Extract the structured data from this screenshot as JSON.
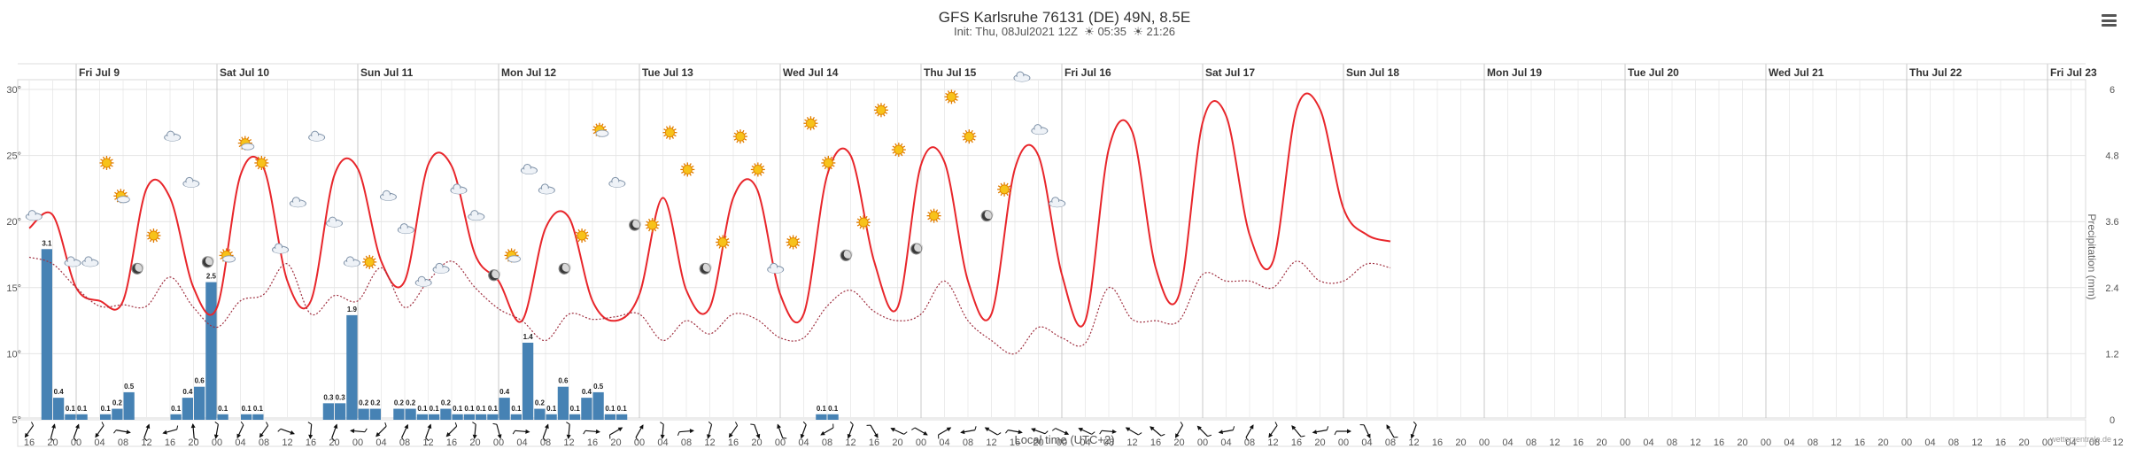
{
  "header": {
    "title": "GFS Karlsruhe 76131 (DE) 49N, 8.5E",
    "init": "Init: Thu, 08Jul2021 12Z",
    "sunrise": "05:35",
    "sunset": "21:26"
  },
  "credit": "wetterzentrale.de",
  "chart_data": {
    "type": "line",
    "title": "GFS Karlsruhe 76131 (DE) 49N, 8.5E",
    "xlabel": "Local time (UTC+2)",
    "ylabel_right": "Precipitation (mm)",
    "y_left": {
      "min": 5,
      "max": 30,
      "ticks": [
        "5°",
        "10°",
        "15°",
        "20°",
        "25°",
        "30°"
      ]
    },
    "y_right": {
      "min": 0,
      "max": 6,
      "ticks": [
        "0",
        "1.2",
        "2.4",
        "3.6",
        "4.8",
        "6"
      ]
    },
    "start_hour": 16,
    "step_hours": 4,
    "hour_labels": [
      "16",
      "20",
      "00",
      "04",
      "08",
      "12",
      "16",
      "20",
      "00",
      "04",
      "08",
      "12",
      "16",
      "20",
      "00",
      "04",
      "08",
      "12",
      "16",
      "20",
      "00",
      "04",
      "08",
      "12",
      "16",
      "20",
      "00",
      "04",
      "08",
      "12",
      "16",
      "20",
      "00",
      "04",
      "08",
      "12",
      "16",
      "20",
      "00",
      "04",
      "08",
      "12",
      "16",
      "20",
      "00",
      "04",
      "08",
      "12",
      "16",
      "20",
      "00",
      "04",
      "08",
      "12",
      "16",
      "20",
      "00",
      "04",
      "08",
      "12",
      "16",
      "20",
      "00",
      "04",
      "08",
      "12",
      "16",
      "20",
      "00",
      "04",
      "08",
      "12",
      "16",
      "20",
      "00",
      "04",
      "08",
      "12",
      "16",
      "20",
      "00",
      "04",
      "08",
      "12",
      "16",
      "20",
      "00",
      "04",
      "08",
      "12",
      "16",
      "20",
      "00",
      "04"
    ],
    "days": [
      {
        "label": "Fri Jul 9",
        "index": 2
      },
      {
        "label": "Sat Jul 10",
        "index": 8
      },
      {
        "label": "Sun Jul 11",
        "index": 14
      },
      {
        "label": "Mon Jul 12",
        "index": 20
      },
      {
        "label": "Tue Jul 13",
        "index": 26
      },
      {
        "label": "Wed Jul 14",
        "index": 32
      },
      {
        "label": "Thu Jul 15",
        "index": 38
      },
      {
        "label": "Fri Jul 16",
        "index": 44
      },
      {
        "label": "Sat Jul 17",
        "index": 50
      },
      {
        "label": "Sun Jul 18",
        "index": 56
      },
      {
        "label": "Mon Jul 19",
        "index": 62
      },
      {
        "label": "Tue Jul 20",
        "index": 68
      },
      {
        "label": "Wed Jul 21",
        "index": 74
      },
      {
        "label": "Thu Jul 22",
        "index": 80
      },
      {
        "label": "Fri Jul 23",
        "index": 86
      }
    ],
    "series": [
      {
        "name": "Temperature (°C)",
        "color": "#e8262b",
        "style": "solid",
        "values": [
          19.5,
          20.5,
          15,
          14,
          14,
          22.5,
          21.8,
          15,
          13.5,
          23.5,
          24,
          15.5,
          14,
          23.5,
          24,
          17,
          15.5,
          24.3,
          24.2,
          17.5,
          15.5,
          12.5,
          19.5,
          20.3,
          14,
          12.5,
          14.5,
          21.8,
          14.8,
          13.5,
          21.8,
          22.5,
          14.5,
          13,
          23.5,
          25,
          17,
          13.5,
          24.3,
          24.5,
          15.5,
          13,
          24,
          25,
          16,
          12.5,
          25.5,
          26.8,
          16.5,
          14.5,
          27.5,
          28,
          19,
          17,
          28.5,
          28.5,
          21,
          19,
          18.5
        ]
      },
      {
        "name": "Dew point (°C)",
        "color": "#a03040",
        "style": "dotted",
        "values": [
          17.3,
          16.8,
          15,
          13.6,
          13.7,
          13.6,
          15.8,
          13.5,
          12,
          14,
          14.5,
          16.8,
          13,
          14.4,
          14,
          16.5,
          13.5,
          15.5,
          17,
          15,
          13.4,
          12.5,
          11,
          13,
          12.6,
          12.8,
          13,
          11,
          12.5,
          11.5,
          13,
          12.6,
          11.2,
          11.2,
          13.6,
          14.8,
          13.2,
          12.5,
          13,
          15.5,
          12.5,
          11,
          10,
          12,
          11.2,
          10.8,
          15,
          12.6,
          12.5,
          12.5,
          16,
          15.5,
          15.5,
          15,
          17,
          15.5,
          15.5,
          16.8,
          16.5
        ]
      }
    ],
    "precipitation": [
      {
        "i": 0.75,
        "v": 3.1
      },
      {
        "i": 1.25,
        "v": 0.4
      },
      {
        "i": 1.75,
        "v": 0.1
      },
      {
        "i": 2.25,
        "v": 0.1
      },
      {
        "i": 3.25,
        "v": 0.1
      },
      {
        "i": 3.75,
        "v": 0.2
      },
      {
        "i": 4.25,
        "v": 0.5
      },
      {
        "i": 6.25,
        "v": 0.1
      },
      {
        "i": 6.75,
        "v": 0.4
      },
      {
        "i": 7.25,
        "v": 0.6
      },
      {
        "i": 7.75,
        "v": 2.5
      },
      {
        "i": 8.25,
        "v": 0.1
      },
      {
        "i": 9.25,
        "v": 0.1
      },
      {
        "i": 9.75,
        "v": 0.1
      },
      {
        "i": 12.75,
        "v": 0.3
      },
      {
        "i": 13.25,
        "v": 0.3
      },
      {
        "i": 13.75,
        "v": 1.9
      },
      {
        "i": 14.25,
        "v": 0.2
      },
      {
        "i": 14.75,
        "v": 0.2
      },
      {
        "i": 15.75,
        "v": 0.2
      },
      {
        "i": 16.25,
        "v": 0.2
      },
      {
        "i": 16.75,
        "v": 0.1
      },
      {
        "i": 17.25,
        "v": 0.1
      },
      {
        "i": 17.75,
        "v": 0.2
      },
      {
        "i": 18.25,
        "v": 0.1
      },
      {
        "i": 18.75,
        "v": 0.1
      },
      {
        "i": 19.25,
        "v": 0.1
      },
      {
        "i": 19.75,
        "v": 0.1
      },
      {
        "i": 20.25,
        "v": 0.4
      },
      {
        "i": 20.75,
        "v": 0.1
      },
      {
        "i": 21.25,
        "v": 1.4
      },
      {
        "i": 21.75,
        "v": 0.2
      },
      {
        "i": 22.25,
        "v": 0.1
      },
      {
        "i": 22.75,
        "v": 0.6
      },
      {
        "i": 23.25,
        "v": 0.1
      },
      {
        "i": 23.75,
        "v": 0.4
      },
      {
        "i": 24.25,
        "v": 0.5
      },
      {
        "i": 24.75,
        "v": 0.1
      },
      {
        "i": 25.25,
        "v": 0.1
      },
      {
        "i": 33.75,
        "v": 0.1
      },
      {
        "i": 34.25,
        "v": 0.1
      }
    ],
    "precip_color": "#4682b4",
    "weather_icons": [
      {
        "i": 0.2,
        "t": 19.5,
        "k": "cloud"
      },
      {
        "i": 1.85,
        "t": 16,
        "k": "cloud"
      },
      {
        "i": 2.6,
        "t": 16,
        "k": "cloud"
      },
      {
        "i": 3.3,
        "t": 23.5,
        "k": "sun"
      },
      {
        "i": 3.9,
        "t": 21,
        "k": "suncloud"
      },
      {
        "i": 4.6,
        "t": 15.5,
        "k": "moon"
      },
      {
        "i": 5.3,
        "t": 18,
        "k": "sun"
      },
      {
        "i": 6.1,
        "t": 25.5,
        "k": "cloud"
      },
      {
        "i": 6.9,
        "t": 22,
        "k": "cloud"
      },
      {
        "i": 7.6,
        "t": 16,
        "k": "moon"
      },
      {
        "i": 8.4,
        "t": 16.5,
        "k": "suncloud"
      },
      {
        "i": 9.2,
        "t": 25,
        "k": "suncloud"
      },
      {
        "i": 9.9,
        "t": 23.5,
        "k": "sun"
      },
      {
        "i": 10.7,
        "t": 17,
        "k": "cloud"
      },
      {
        "i": 11.45,
        "t": 20.5,
        "k": "cloud"
      },
      {
        "i": 12.25,
        "t": 25.5,
        "k": "cloud"
      },
      {
        "i": 13,
        "t": 19,
        "k": "cloud"
      },
      {
        "i": 13.75,
        "t": 16,
        "k": "cloud"
      },
      {
        "i": 14.5,
        "t": 16,
        "k": "sun"
      },
      {
        "i": 15.3,
        "t": 21,
        "k": "cloud"
      },
      {
        "i": 16.05,
        "t": 18.5,
        "k": "cloud"
      },
      {
        "i": 16.8,
        "t": 14.5,
        "k": "cloud"
      },
      {
        "i": 17.55,
        "t": 15.5,
        "k": "cloud"
      },
      {
        "i": 18.3,
        "t": 21.5,
        "k": "cloud"
      },
      {
        "i": 19.05,
        "t": 19.5,
        "k": "cloud"
      },
      {
        "i": 19.8,
        "t": 15,
        "k": "moon"
      },
      {
        "i": 20.55,
        "t": 16.5,
        "k": "suncloud"
      },
      {
        "i": 21.3,
        "t": 23,
        "k": "cloud"
      },
      {
        "i": 22.05,
        "t": 21.5,
        "k": "cloud"
      },
      {
        "i": 22.8,
        "t": 15.5,
        "k": "moon"
      },
      {
        "i": 23.55,
        "t": 18,
        "k": "sun"
      },
      {
        "i": 24.3,
        "t": 26,
        "k": "suncloud"
      },
      {
        "i": 25.05,
        "t": 22,
        "k": "cloud"
      },
      {
        "i": 25.8,
        "t": 18.8,
        "k": "moon"
      },
      {
        "i": 26.55,
        "t": 18.8,
        "k": "sun"
      },
      {
        "i": 27.3,
        "t": 25.8,
        "k": "sun"
      },
      {
        "i": 28.05,
        "t": 23,
        "k": "sun"
      },
      {
        "i": 28.8,
        "t": 15.5,
        "k": "moon"
      },
      {
        "i": 29.55,
        "t": 17.5,
        "k": "sun"
      },
      {
        "i": 30.3,
        "t": 25.5,
        "k": "sun"
      },
      {
        "i": 31.05,
        "t": 23,
        "k": "sun"
      },
      {
        "i": 31.8,
        "t": 15.5,
        "k": "cloud"
      },
      {
        "i": 32.55,
        "t": 17.5,
        "k": "sun"
      },
      {
        "i": 33.3,
        "t": 26.5,
        "k": "sun"
      },
      {
        "i": 34.05,
        "t": 23.5,
        "k": "sun"
      },
      {
        "i": 34.8,
        "t": 16.5,
        "k": "moon"
      },
      {
        "i": 35.55,
        "t": 19,
        "k": "sun"
      },
      {
        "i": 36.3,
        "t": 27.5,
        "k": "sun"
      },
      {
        "i": 37.05,
        "t": 24.5,
        "k": "sun"
      },
      {
        "i": 37.8,
        "t": 17,
        "k": "moon"
      },
      {
        "i": 38.55,
        "t": 19.5,
        "k": "sun"
      },
      {
        "i": 39.3,
        "t": 28.5,
        "k": "sun"
      },
      {
        "i": 40.05,
        "t": 25.5,
        "k": "sun"
      },
      {
        "i": 40.8,
        "t": 19.5,
        "k": "moon"
      },
      {
        "i": 41.55,
        "t": 21.5,
        "k": "sun"
      },
      {
        "i": 42.3,
        "t": 30,
        "k": "cloud"
      },
      {
        "i": 43.05,
        "t": 26,
        "k": "cloud"
      },
      {
        "i": 43.8,
        "t": 20.5,
        "k": "cloud"
      }
    ],
    "wind_angles": [
      215,
      15,
      20,
      215,
      100,
      20,
      255,
      355,
      190,
      205,
      215,
      110,
      185,
      20,
      275,
      225,
      25,
      20,
      225,
      185,
      165,
      95,
      20,
      185,
      95,
      60,
      30,
      185,
      85,
      195,
      215,
      160,
      340,
      200,
      240,
      200,
      150,
      295,
      120,
      60,
      260,
      300,
      100,
      290,
      115,
      295,
      95,
      300,
      310,
      210,
      315,
      260,
      30,
      215,
      320,
      260,
      90,
      155,
      330,
      200
    ]
  }
}
